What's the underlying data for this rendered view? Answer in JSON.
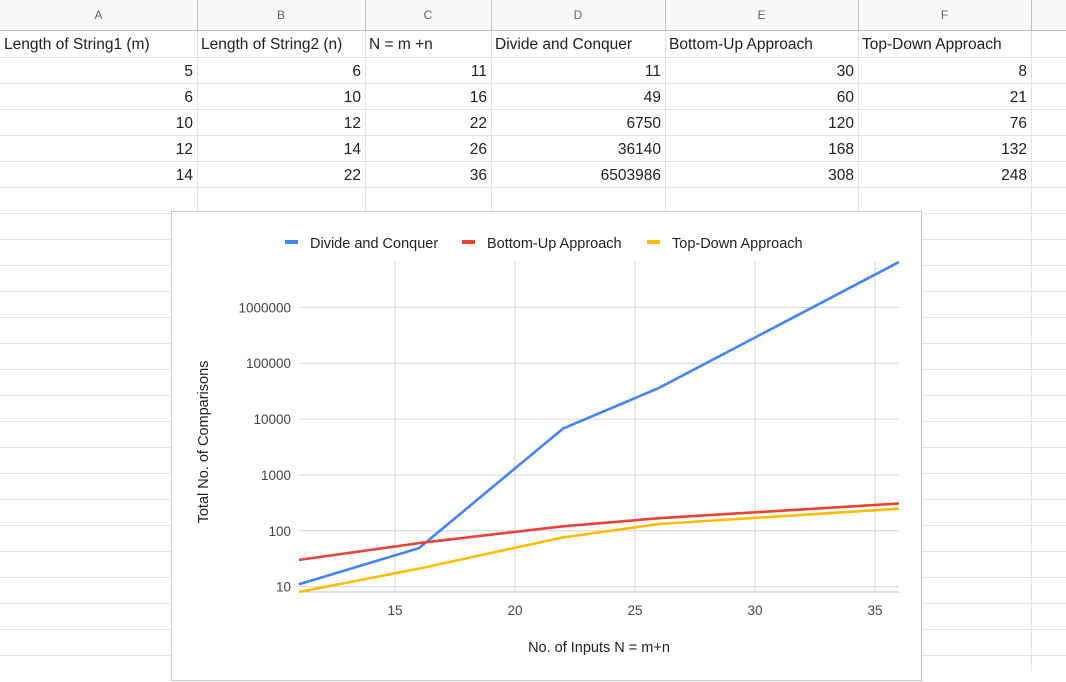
{
  "columns": [
    "A",
    "B",
    "C",
    "D",
    "E",
    "F"
  ],
  "headers": [
    "Length of String1 (m)",
    "Length of String2 (n)",
    "N  = m +n",
    "Divide and Conquer",
    "Bottom-Up Approach",
    "Top-Down Approach"
  ],
  "rows": [
    [
      "5",
      "6",
      "11",
      "11",
      "30",
      "8"
    ],
    [
      "6",
      "10",
      "16",
      "49",
      "60",
      "21"
    ],
    [
      "10",
      "12",
      "22",
      "6750",
      "120",
      "76"
    ],
    [
      "12",
      "14",
      "26",
      "36140",
      "168",
      "132"
    ],
    [
      "14",
      "22",
      "36",
      "6503986",
      "308",
      "248"
    ]
  ],
  "chart_data": {
    "type": "line",
    "x": [
      11,
      16,
      22,
      26,
      36
    ],
    "series": [
      {
        "name": "Divide and Conquer",
        "values": [
          11,
          49,
          6750,
          36140,
          6503986
        ],
        "color": "#4285f4"
      },
      {
        "name": "Bottom-Up Approach",
        "values": [
          30,
          60,
          120,
          168,
          308
        ],
        "color": "#ea4335"
      },
      {
        "name": "Top-Down Approach",
        "values": [
          8,
          21,
          76,
          132,
          248
        ],
        "color": "#fbbc04"
      }
    ],
    "xlabel": "No. of Inputs N = m+n",
    "ylabel": "Total No. of Comparisons",
    "y_scale": "log",
    "x_ticks": [
      "15",
      "20",
      "25",
      "30",
      "35"
    ],
    "y_ticks": [
      "10",
      "100",
      "1000",
      "10000",
      "100000",
      "1000000"
    ],
    "xlim": [
      11,
      36
    ],
    "ylim": [
      8,
      6503986
    ],
    "grid": true,
    "legend_position": "top"
  }
}
